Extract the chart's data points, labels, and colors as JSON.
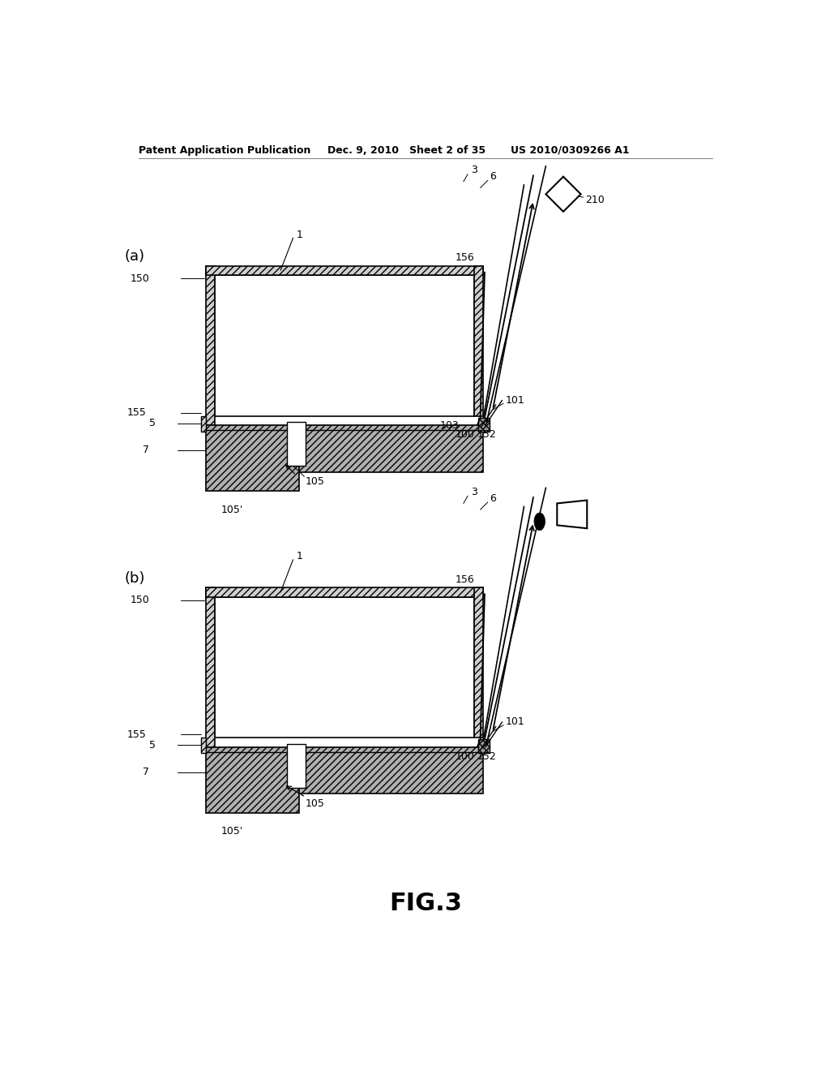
{
  "bg_color": "#ffffff",
  "header_left": "Patent Application Publication",
  "header_mid": "Dec. 9, 2010   Sheet 2 of 35",
  "header_right": "US 2010/0309266 A1",
  "fig_title": "FIG.3",
  "label_a": "(a)",
  "label_b": "(b)"
}
